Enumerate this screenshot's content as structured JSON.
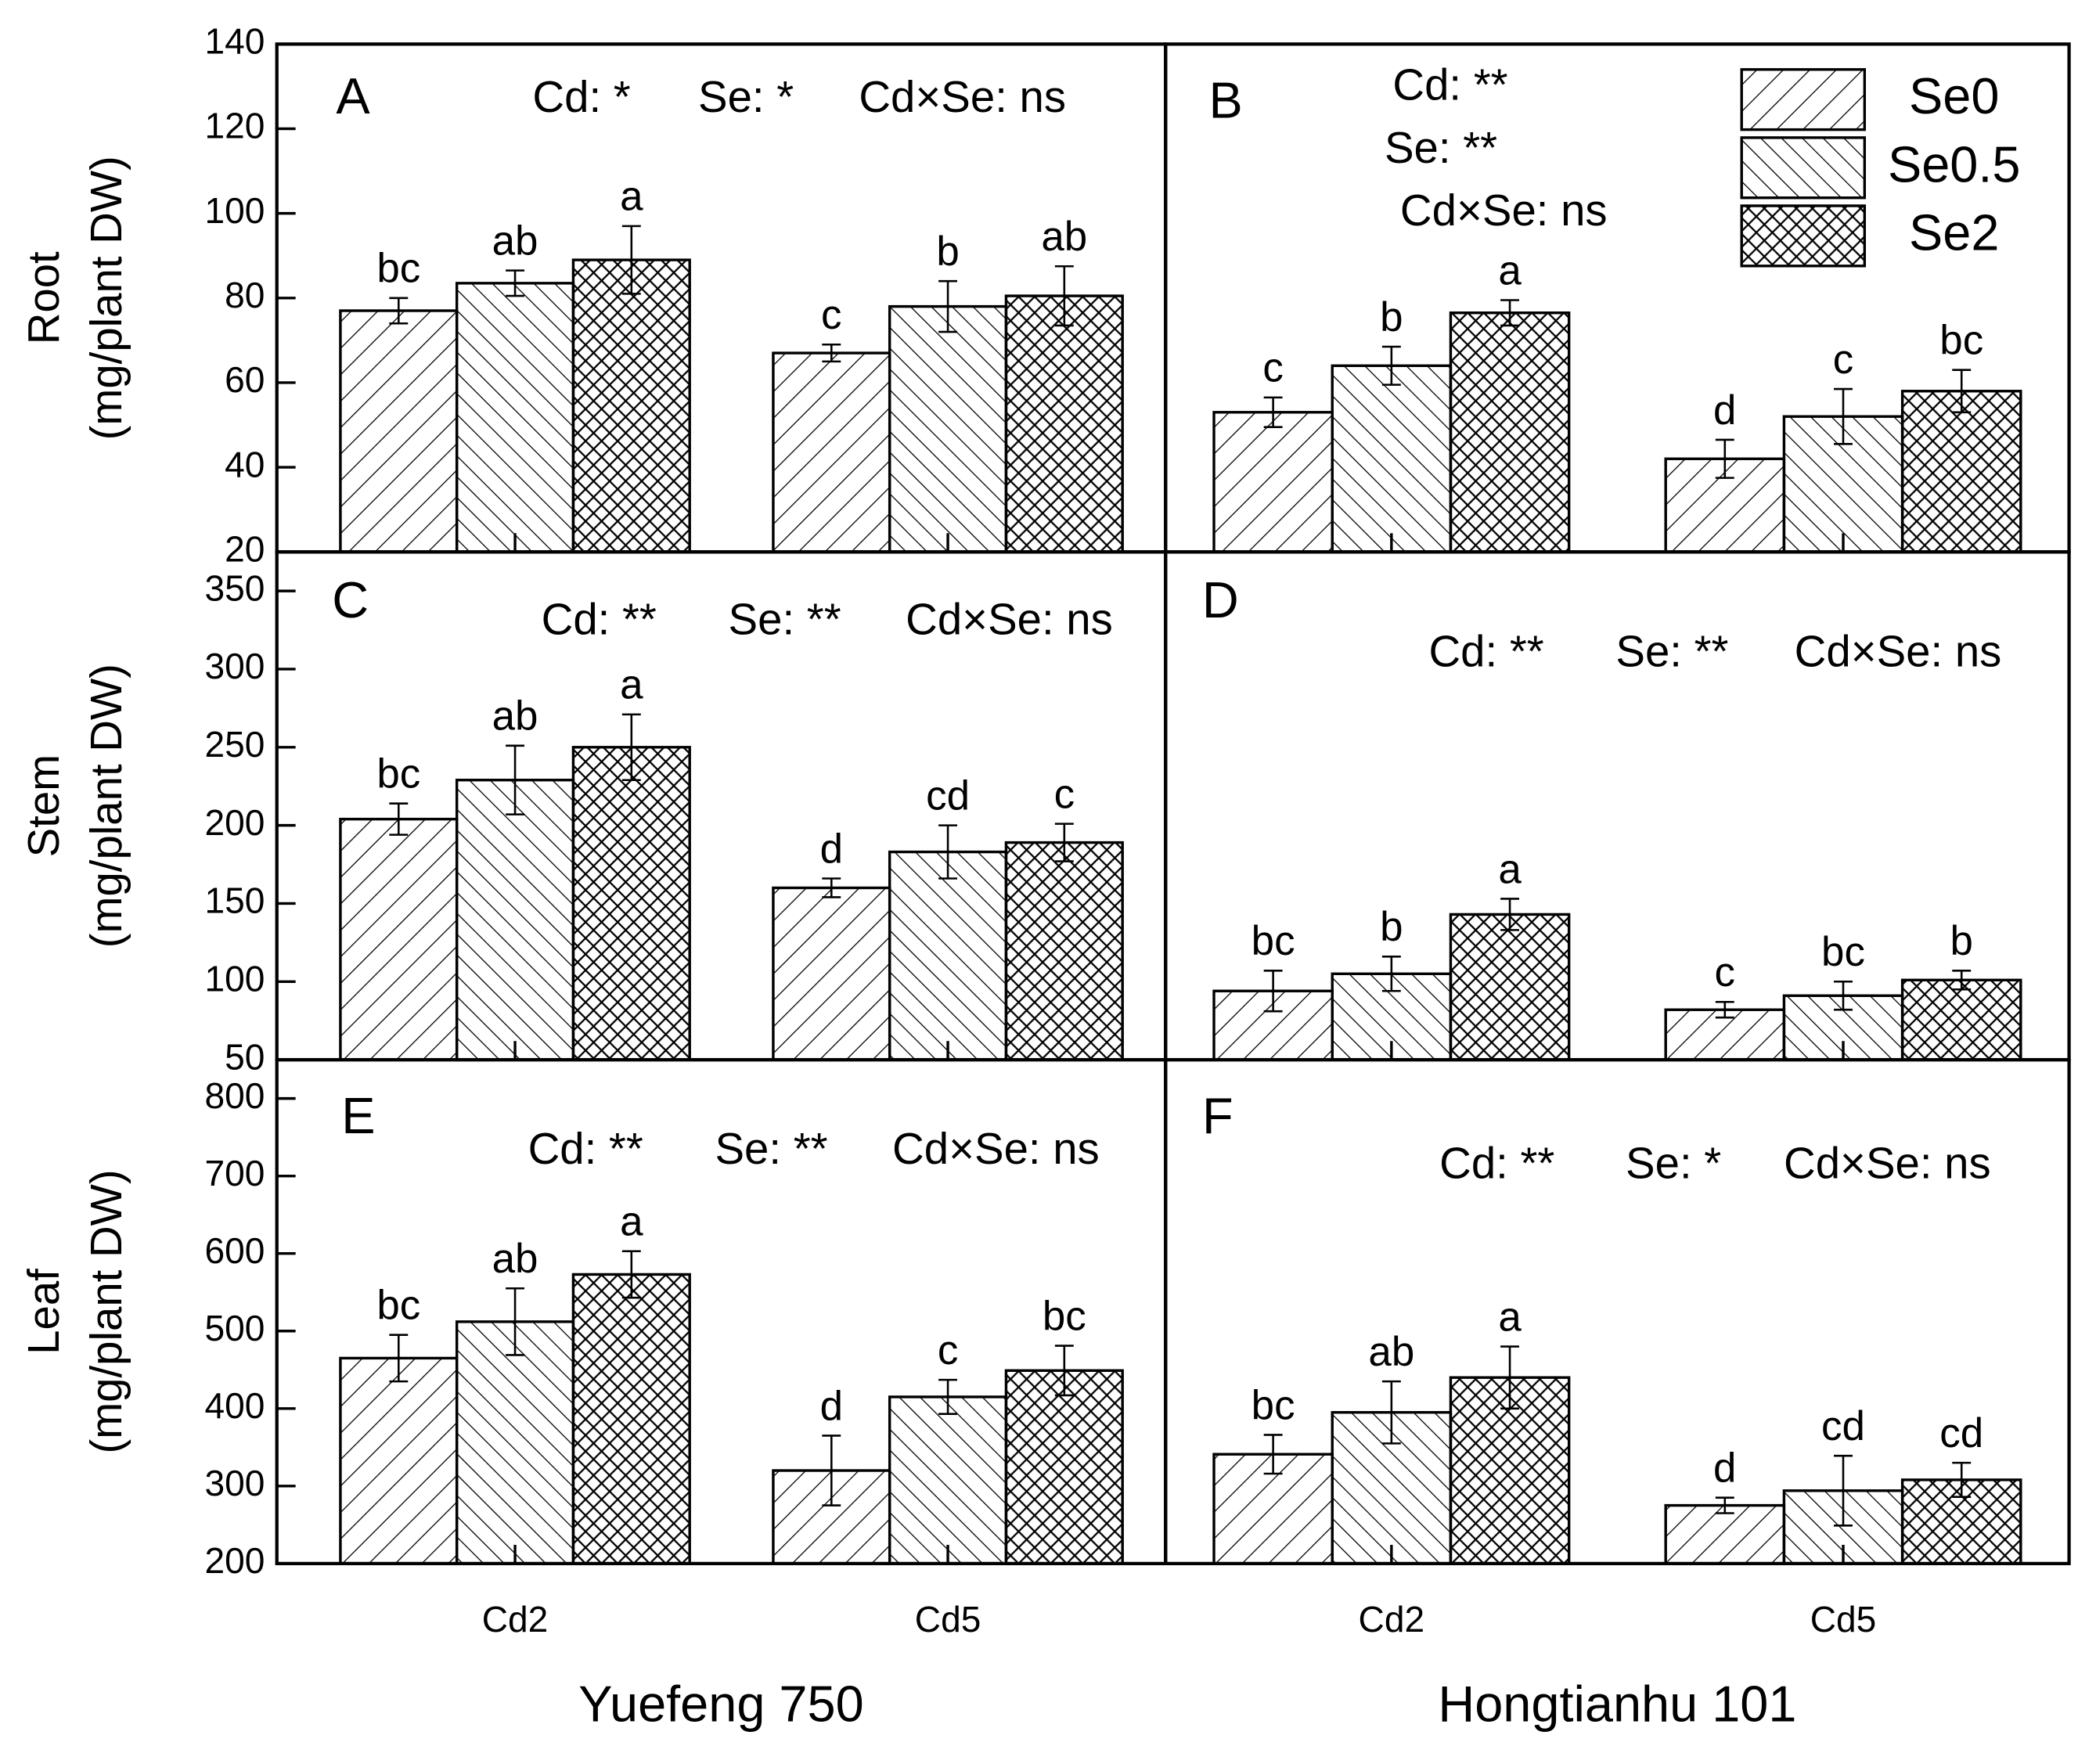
{
  "chart_data": [
    {
      "type": "bar",
      "label": "A",
      "ylabel": [
        "Root",
        "(mg/plant DW)"
      ],
      "annotations": [
        "Cd: *",
        "Se: *",
        "Cd×Se: ns"
      ],
      "categories": [
        "Cd2",
        "Cd5"
      ],
      "ylim": [
        20,
        140
      ],
      "yticks": [
        20,
        40,
        60,
        80,
        100,
        120,
        140
      ],
      "series": [
        {
          "name": "Se0",
          "hatch": "/",
          "values": [
            77,
            67
          ],
          "errors": [
            3,
            2
          ],
          "letters": [
            "bc",
            "c"
          ]
        },
        {
          "name": "Se0.5",
          "hatch": "\\",
          "values": [
            83.5,
            78
          ],
          "errors": [
            3,
            6
          ],
          "letters": [
            "ab",
            "b"
          ]
        },
        {
          "name": "Se2",
          "hatch": "x",
          "values": [
            89,
            80.5
          ],
          "errors": [
            8,
            7
          ],
          "letters": [
            "a",
            "ab"
          ]
        }
      ]
    },
    {
      "type": "bar",
      "label": "B",
      "annotations": [
        "Cd: **",
        "Se: **",
        "Cd×Se: ns"
      ],
      "legend": "upper right",
      "categories": [
        "Cd2",
        "Cd5"
      ],
      "ylim": [
        20,
        140
      ],
      "series": [
        {
          "name": "Se0",
          "hatch": "/",
          "values": [
            53,
            42
          ],
          "errors": [
            3.5,
            4.5
          ],
          "letters": [
            "c",
            "d"
          ]
        },
        {
          "name": "Se0.5",
          "hatch": "\\",
          "values": [
            64,
            52
          ],
          "errors": [
            4.5,
            6.5
          ],
          "letters": [
            "b",
            "c"
          ]
        },
        {
          "name": "Se2",
          "hatch": "x",
          "values": [
            76.5,
            58
          ],
          "errors": [
            3,
            5
          ],
          "letters": [
            "a",
            "bc"
          ]
        }
      ]
    },
    {
      "type": "bar",
      "label": "C",
      "ylabel": [
        "Stem",
        "(mg/plant DW)"
      ],
      "annotations": [
        "Cd: **",
        "Se: **",
        "Cd×Se: ns"
      ],
      "categories": [
        "Cd2",
        "Cd5"
      ],
      "ylim": [
        50,
        375
      ],
      "yticks": [
        50,
        100,
        150,
        200,
        250,
        300,
        350
      ],
      "series": [
        {
          "name": "Se0",
          "hatch": "/",
          "values": [
            204,
            160
          ],
          "errors": [
            10,
            6
          ],
          "letters": [
            "bc",
            "d"
          ]
        },
        {
          "name": "Se0.5",
          "hatch": "\\",
          "values": [
            229,
            183
          ],
          "errors": [
            22,
            17
          ],
          "letters": [
            "ab",
            "cd"
          ]
        },
        {
          "name": "Se2",
          "hatch": "x",
          "values": [
            250,
            189
          ],
          "errors": [
            21,
            12
          ],
          "letters": [
            "a",
            "c"
          ]
        }
      ]
    },
    {
      "type": "bar",
      "label": "D",
      "annotations": [
        "Cd: **",
        "Se: **",
        "Cd×Se: ns"
      ],
      "categories": [
        "Cd2",
        "Cd5"
      ],
      "ylim": [
        50,
        375
      ],
      "series": [
        {
          "name": "Se0",
          "hatch": "/",
          "values": [
            94,
            82
          ],
          "errors": [
            13,
            5
          ],
          "letters": [
            "bc",
            "c"
          ]
        },
        {
          "name": "Se0.5",
          "hatch": "\\",
          "values": [
            105,
            91
          ],
          "errors": [
            11,
            9
          ],
          "letters": [
            "b",
            "bc"
          ]
        },
        {
          "name": "Se2",
          "hatch": "x",
          "values": [
            143,
            101
          ],
          "errors": [
            10,
            6
          ],
          "letters": [
            "a",
            "b"
          ]
        }
      ]
    },
    {
      "type": "bar",
      "label": "E",
      "ylabel": [
        "Leaf",
        "(mg/plant DW)"
      ],
      "annotations": [
        "Cd: **",
        "Se: **",
        "Cd×Se: ns"
      ],
      "xlabel": "Yuefeng 750",
      "categories": [
        "Cd2",
        "Cd5"
      ],
      "ylim": [
        200,
        850
      ],
      "yticks": [
        200,
        300,
        400,
        500,
        600,
        700,
        800
      ],
      "series": [
        {
          "name": "Se0",
          "hatch": "/",
          "values": [
            465,
            320
          ],
          "errors": [
            30,
            45
          ],
          "letters": [
            "bc",
            "d"
          ]
        },
        {
          "name": "Se0.5",
          "hatch": "\\",
          "values": [
            512,
            415
          ],
          "errors": [
            43,
            22
          ],
          "letters": [
            "ab",
            "c"
          ]
        },
        {
          "name": "Se2",
          "hatch": "x",
          "values": [
            573,
            449
          ],
          "errors": [
            30,
            32
          ],
          "letters": [
            "a",
            "bc"
          ]
        }
      ]
    },
    {
      "type": "bar",
      "label": "F",
      "annotations": [
        "Cd: **",
        "Se: *",
        "Cd×Se: ns"
      ],
      "xlabel": "Hongtianhu 101",
      "categories": [
        "Cd2",
        "Cd5"
      ],
      "ylim": [
        200,
        850
      ],
      "series": [
        {
          "name": "Se0",
          "hatch": "/",
          "values": [
            341,
            275
          ],
          "errors": [
            25,
            10
          ],
          "letters": [
            "bc",
            "d"
          ]
        },
        {
          "name": "Se0.5",
          "hatch": "\\",
          "values": [
            395,
            294
          ],
          "errors": [
            40,
            45
          ],
          "letters": [
            "ab",
            "cd"
          ]
        },
        {
          "name": "Se2",
          "hatch": "x",
          "values": [
            440,
            308
          ],
          "errors": [
            40,
            22
          ],
          "letters": [
            "a",
            "cd"
          ]
        }
      ]
    }
  ]
}
